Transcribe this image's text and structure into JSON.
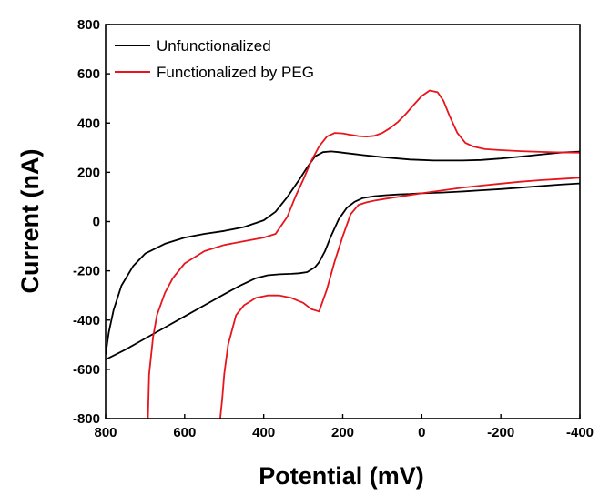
{
  "chart_data": {
    "type": "line",
    "xlabel": "Potential (mV)",
    "ylabel": "Current (nA)",
    "xlim": [
      800,
      -400
    ],
    "ylim": [
      -800,
      800
    ],
    "x_reversed": true,
    "xticks": [
      800,
      600,
      400,
      200,
      0,
      -200,
      -400
    ],
    "yticks": [
      -800,
      -600,
      -400,
      -200,
      0,
      200,
      400,
      600,
      800
    ],
    "grid": false,
    "legend_position": "top-left",
    "series": [
      {
        "name": "Unfunctionalized",
        "color": "#000000",
        "x": [
          800,
          792,
          780,
          760,
          730,
          700,
          650,
          600,
          550,
          500,
          450,
          400,
          370,
          340,
          310,
          290,
          270,
          250,
          230,
          210,
          190,
          170,
          150,
          120,
          90,
          60,
          30,
          0,
          -30,
          -60,
          -100,
          -150,
          -200,
          -250,
          -300,
          -350,
          -400
        ],
        "y": [
          -540,
          -450,
          -360,
          -260,
          -180,
          -130,
          -90,
          -65,
          -50,
          -38,
          -22,
          5,
          40,
          100,
          170,
          220,
          265,
          282,
          285,
          282,
          278,
          274,
          270,
          265,
          260,
          256,
          252,
          250,
          248,
          248,
          248,
          250,
          256,
          264,
          272,
          280,
          284
        ],
        "return_x": [
          -400,
          -350,
          -300,
          -250,
          -200,
          -150,
          -100,
          -50,
          0,
          30,
          60,
          90,
          120,
          150,
          170,
          190,
          210,
          230,
          245,
          260,
          270,
          290,
          310,
          330,
          360,
          390,
          420,
          460,
          500,
          550,
          600,
          650,
          700,
          750,
          800
        ],
        "return_y": [
          155,
          150,
          144,
          138,
          132,
          127,
          122,
          118,
          115,
          112,
          110,
          107,
          103,
          95,
          80,
          55,
          10,
          -60,
          -120,
          -165,
          -185,
          -205,
          -210,
          -212,
          -214,
          -218,
          -230,
          -260,
          -295,
          -340,
          -385,
          -430,
          -475,
          -520,
          -560
        ]
      },
      {
        "name": "Functionalized by PEG",
        "color": "#e8141b",
        "x": [
          693,
          690,
          680,
          670,
          650,
          630,
          600,
          550,
          500,
          450,
          400,
          370,
          340,
          320,
          300,
          280,
          260,
          240,
          220,
          200,
          180,
          160,
          140,
          120,
          100,
          80,
          60,
          40,
          20,
          0,
          -20,
          -40,
          -55,
          -70,
          -90,
          -110,
          -130,
          -160,
          -200,
          -250,
          -300,
          -350,
          -400
        ],
        "y": [
          -800,
          -620,
          -470,
          -380,
          -290,
          -230,
          -170,
          -120,
          -95,
          -80,
          -65,
          -50,
          20,
          100,
          170,
          245,
          305,
          345,
          360,
          358,
          352,
          347,
          345,
          348,
          360,
          380,
          405,
          438,
          475,
          510,
          532,
          525,
          490,
          430,
          360,
          320,
          305,
          294,
          290,
          286,
          283,
          281,
          280
        ],
        "return_x": [
          -400,
          -350,
          -300,
          -250,
          -200,
          -150,
          -100,
          -50,
          0,
          30,
          60,
          90,
          120,
          140,
          160,
          180,
          200,
          220,
          240,
          260,
          280,
          300,
          330,
          360,
          390,
          420,
          450,
          470,
          490,
          500,
          505,
          510
        ],
        "return_y": [
          178,
          173,
          168,
          162,
          154,
          146,
          137,
          126,
          115,
          108,
          100,
          93,
          85,
          78,
          68,
          30,
          -60,
          -160,
          -275,
          -365,
          -355,
          -330,
          -310,
          -300,
          -300,
          -310,
          -340,
          -380,
          -500,
          -620,
          -720,
          -800
        ]
      }
    ]
  }
}
